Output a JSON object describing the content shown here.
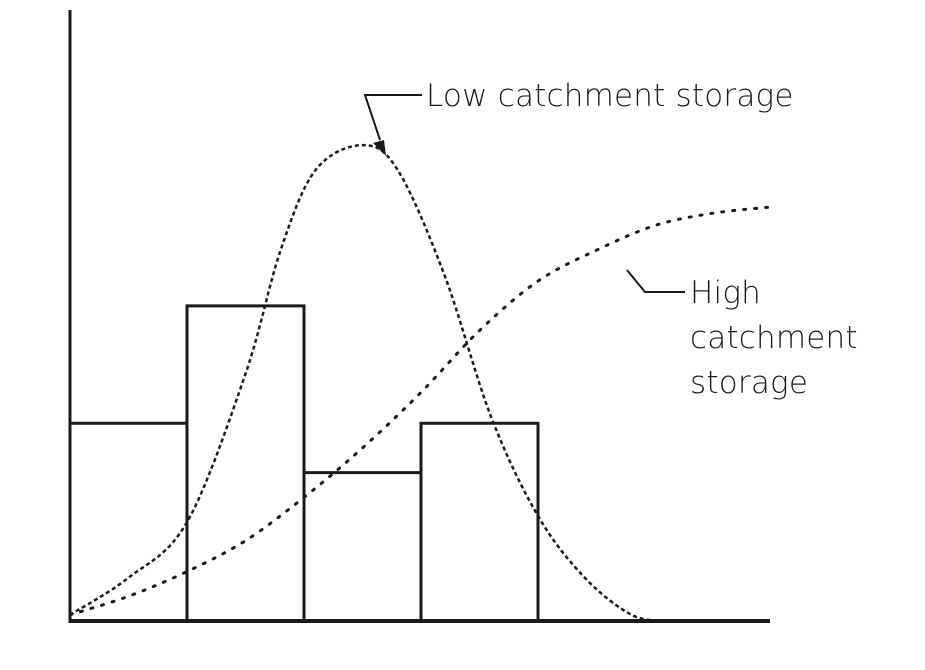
{
  "chart_data": {
    "type": "bar",
    "xlim": [
      0,
      6
    ],
    "ylim": [
      0,
      10
    ],
    "bars": [
      {
        "x0": 0,
        "x1": 1,
        "value": 3.2
      },
      {
        "x0": 1,
        "x1": 2,
        "value": 5.1
      },
      {
        "x0": 2,
        "x1": 3,
        "value": 2.4
      },
      {
        "x0": 3,
        "x1": 4,
        "value": 3.2
      }
    ],
    "series": [
      {
        "name": "Low catchment storage",
        "style": "dashed",
        "x": [
          0,
          0.5,
          1.0,
          1.5,
          1.8,
          2.1,
          2.5,
          2.8,
          3.2,
          3.6,
          4.0,
          4.4,
          4.8,
          5.1
        ],
        "y": [
          0.1,
          0.7,
          1.6,
          4.0,
          6.0,
          7.3,
          7.7,
          7.3,
          5.6,
          3.3,
          1.7,
          0.7,
          0.1,
          0
        ]
      },
      {
        "name": "High catchment storage",
        "style": "dotted",
        "x": [
          0,
          0.5,
          1.0,
          1.5,
          2.0,
          2.5,
          3.0,
          3.5,
          4.0,
          4.5,
          5.0,
          5.5,
          6.0
        ],
        "y": [
          0.1,
          0.4,
          0.8,
          1.3,
          2.0,
          2.8,
          3.7,
          4.7,
          5.5,
          6.0,
          6.4,
          6.6,
          6.7
        ]
      }
    ],
    "annotations": [
      {
        "text": "Low catchment storage",
        "lines": [
          "Low catchment storage"
        ]
      },
      {
        "text": "High catchment storage",
        "lines": [
          "High",
          "catchment",
          "storage"
        ]
      }
    ],
    "colors": {
      "ink": "#1a1a1a",
      "background": "#ffffff"
    }
  }
}
